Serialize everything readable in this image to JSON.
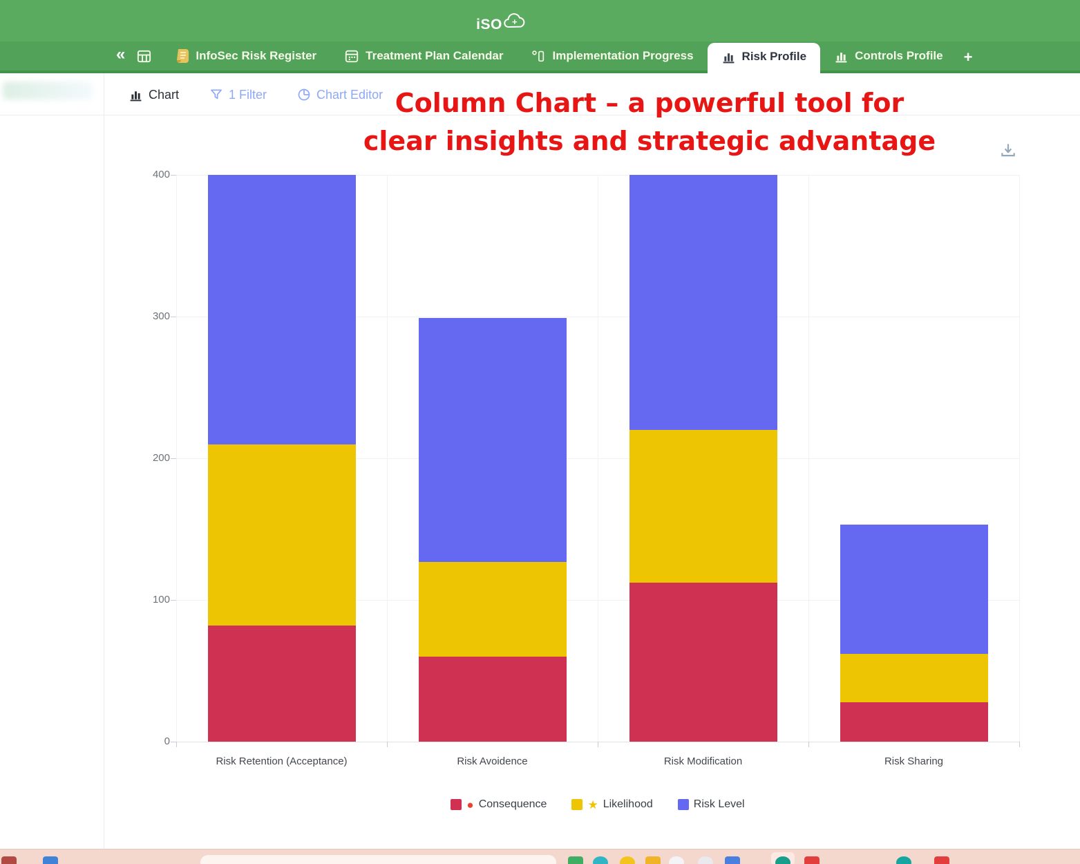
{
  "app": {
    "logo_text": "iSO",
    "logo_plus": "+"
  },
  "tabbar": {
    "collapse_icon": "«",
    "tabs": [
      {
        "label": "InfoSec Risk Register",
        "icon": "scroll-icon",
        "active": false
      },
      {
        "label": "Treatment Plan Calendar",
        "icon": "calendar-icon",
        "active": false
      },
      {
        "label": "Implementation Progress",
        "icon": "kanban-icon",
        "active": false
      },
      {
        "label": "Risk Profile",
        "icon": "bar-chart-icon",
        "active": true
      },
      {
        "label": "Controls Profile",
        "icon": "bar-chart-icon",
        "active": false
      }
    ],
    "add_label": "+"
  },
  "toolbar": {
    "chart_label": "Chart",
    "filter_label": "1 Filter",
    "editor_label": "Chart Editor"
  },
  "annotation": {
    "line1": "Column Chart – a powerful tool for",
    "line2": "clear insights and strategic advantage",
    "color": "#e81515"
  },
  "chart_data": {
    "type": "bar",
    "stacked": true,
    "title": "",
    "xlabel": "",
    "ylabel": "",
    "categories": [
      "Risk Retention (Acceptance)",
      "Risk Avoidence",
      "Risk Modification",
      "Risk Sharing"
    ],
    "series": [
      {
        "name": "Consequence",
        "marker": "red-circle",
        "marker_color": "#e8432f",
        "color": "#ce3151",
        "values": [
          82,
          60,
          112,
          28
        ]
      },
      {
        "name": "Likelihood",
        "marker": "yellow-star",
        "marker_color": "#f2c200",
        "color": "#edc502",
        "values": [
          128,
          67,
          108,
          34
        ]
      },
      {
        "name": "Risk Level",
        "marker": null,
        "marker_color": null,
        "color": "#6569f1",
        "values": [
          190,
          172,
          180,
          91
        ]
      }
    ],
    "stack_totals": [
      400,
      299,
      400,
      153
    ],
    "ylim": [
      0,
      400
    ],
    "yticks": [
      0,
      100,
      200,
      300,
      400
    ],
    "grid": true,
    "legend_position": "bottom"
  },
  "taskbar": {
    "app_icons": [
      {
        "color": "#b04a42",
        "shape": "square"
      },
      {
        "color": "#3f82d6",
        "shape": "square"
      },
      {
        "color": "#3fae62",
        "shape": "square"
      },
      {
        "color": "#31b5c4",
        "shape": "circle"
      },
      {
        "color": "#f3c41e",
        "shape": "circle"
      },
      {
        "color": "#f0b429",
        "shape": "square"
      },
      {
        "color": "#f4f4f6",
        "shape": "circle"
      },
      {
        "color": "#e9e9ee",
        "shape": "circle"
      },
      {
        "color": "#4a7fe0",
        "shape": "square"
      },
      {
        "color": "#199e8c",
        "shape": "circle",
        "tile": true
      },
      {
        "color": "#e23e3e",
        "shape": "square"
      },
      {
        "color": "#16a5a0",
        "shape": "circle"
      },
      {
        "color": "#e23e3e",
        "shape": "square"
      }
    ]
  }
}
